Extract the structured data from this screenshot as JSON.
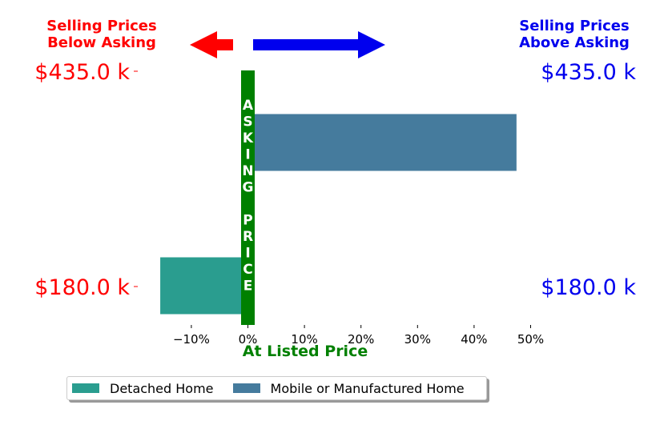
{
  "chart_data": {
    "type": "bar",
    "orientation": "horizontal",
    "categories": [
      "$180.0 k",
      "$435.0 k"
    ],
    "series": [
      {
        "name": "Detached Home",
        "category": "$180.0 k",
        "value": -15.5,
        "color": "#2a9d8f"
      },
      {
        "name": "Mobile or Manufactured Home",
        "category": "$435.0 k",
        "value": 47.5,
        "color": "#457b9d"
      }
    ],
    "xlim": [
      -20,
      52
    ],
    "x_ticks": [
      {
        "value": -10,
        "label": "−10%"
      },
      {
        "value": 0,
        "label": "0%"
      },
      {
        "value": 10,
        "label": "10%"
      },
      {
        "value": 20,
        "label": "20%"
      },
      {
        "value": 30,
        "label": "30%"
      },
      {
        "value": 40,
        "label": "40%"
      },
      {
        "value": 50,
        "label": "50%"
      }
    ],
    "xlabel": "At Listed Price",
    "left_labels": [
      "$435.0 k",
      "$180.0 k"
    ],
    "right_labels": [
      "$435.0 k",
      "$180.0 k"
    ],
    "left_header": [
      "Selling Prices",
      "Below Asking"
    ],
    "right_header": [
      "Selling Prices",
      "Above Asking"
    ],
    "center_label": "ASKING PRICE",
    "colors": {
      "below": "#ff0000",
      "above": "#0000ee",
      "center": "#008000",
      "text": "#000000"
    },
    "legend_placement": "bottom-left",
    "grid": false
  },
  "legend": {
    "items": [
      {
        "label": "Detached Home",
        "color": "#2a9d8f"
      },
      {
        "label": "Mobile or Manufactured Home",
        "color": "#457b9d"
      }
    ]
  }
}
